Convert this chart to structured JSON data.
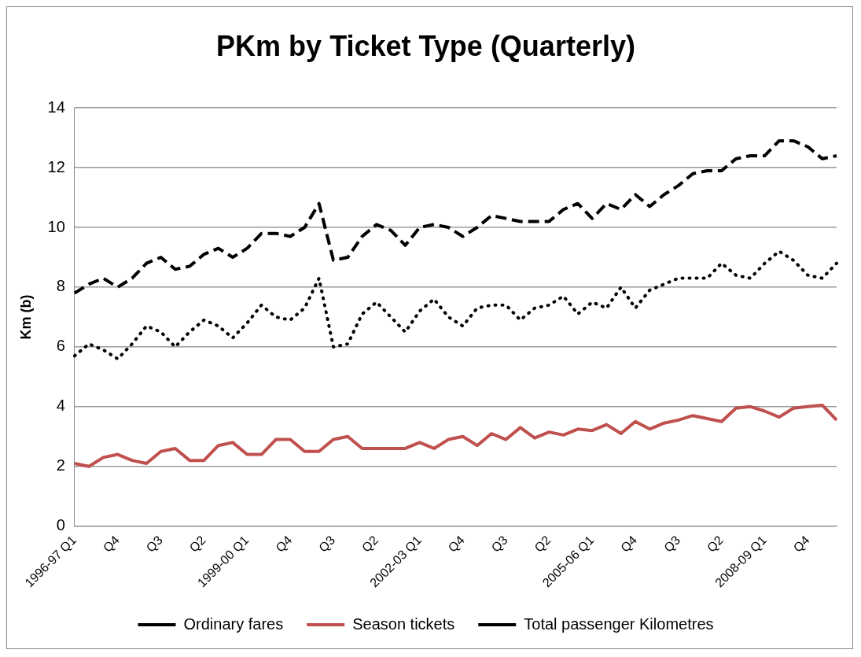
{
  "chart_data": {
    "type": "line",
    "title": "PKm by Ticket Type (Quarterly)",
    "ylabel": "Km (b)",
    "categories": [
      "1996-97 Q1",
      null,
      null,
      "Q4",
      null,
      null,
      "Q3",
      null,
      null,
      "Q2",
      null,
      null,
      "1999-00 Q1",
      null,
      null,
      "Q4",
      null,
      null,
      "Q3",
      null,
      null,
      "Q2",
      null,
      null,
      "2002-03 Q1",
      null,
      null,
      "Q4",
      null,
      null,
      "Q3",
      null,
      null,
      "Q2",
      null,
      null,
      "2005-06 Q1",
      null,
      null,
      "Q4",
      null,
      null,
      "Q3",
      null,
      null,
      "Q2",
      null,
      null,
      "2008-09 Q1",
      null,
      null,
      "Q4",
      null,
      null
    ],
    "series": [
      {
        "name": "Ordinary fares",
        "color": "#000000",
        "line_style": "dotted",
        "values": [
          5.7,
          6.1,
          5.9,
          5.6,
          6.1,
          6.7,
          6.5,
          6.0,
          6.5,
          6.9,
          6.7,
          6.3,
          6.8,
          7.4,
          7.0,
          6.9,
          7.3,
          8.3,
          6.0,
          6.1,
          7.1,
          7.5,
          7.0,
          6.5,
          7.2,
          7.6,
          7.0,
          6.7,
          7.3,
          7.4,
          7.4,
          6.9,
          7.3,
          7.4,
          7.7,
          7.1,
          7.5,
          7.3,
          8.0,
          7.3,
          7.9,
          8.1,
          8.3,
          8.3,
          8.3,
          8.8,
          8.4,
          8.3,
          8.8,
          9.2,
          8.9,
          8.4,
          8.3,
          8.8
        ]
      },
      {
        "name": "Season tickets",
        "color": "#c0504d",
        "line_style": "solid",
        "values": [
          2.1,
          2.0,
          2.3,
          2.4,
          2.2,
          2.1,
          2.5,
          2.6,
          2.2,
          2.2,
          2.7,
          2.8,
          2.4,
          2.4,
          2.9,
          2.9,
          2.5,
          2.5,
          2.9,
          3.0,
          2.6,
          2.6,
          2.6,
          2.6,
          2.8,
          2.6,
          2.9,
          3.0,
          2.7,
          3.1,
          2.9,
          3.3,
          2.95,
          3.15,
          3.05,
          3.25,
          3.2,
          3.4,
          3.1,
          3.5,
          3.25,
          3.45,
          3.55,
          3.7,
          3.6,
          3.5,
          3.95,
          4.0,
          3.85,
          3.65,
          3.95,
          4.0,
          4.05,
          3.55
        ]
      },
      {
        "name": "Total passenger Kilometres",
        "color": "#000000",
        "line_style": "dashed",
        "values": [
          7.8,
          8.1,
          8.3,
          8.0,
          8.3,
          8.8,
          9.0,
          8.6,
          8.7,
          9.1,
          9.3,
          9.0,
          9.3,
          9.8,
          9.8,
          9.7,
          10.0,
          10.8,
          8.9,
          9.0,
          9.7,
          10.1,
          9.9,
          9.4,
          10.0,
          10.1,
          10.0,
          9.7,
          10.0,
          10.4,
          10.3,
          10.2,
          10.2,
          10.2,
          10.6,
          10.8,
          10.3,
          10.8,
          10.6,
          11.1,
          10.7,
          11.1,
          11.4,
          11.8,
          11.9,
          11.9,
          12.3,
          12.4,
          12.4,
          12.9,
          12.9,
          12.7,
          12.3,
          12.4
        ]
      }
    ],
    "ylim": [
      0,
      14
    ],
    "yticks": [
      0,
      2,
      4,
      6,
      8,
      10,
      12,
      14
    ],
    "grid": "y",
    "legend": "bottom",
    "marker": "none"
  }
}
